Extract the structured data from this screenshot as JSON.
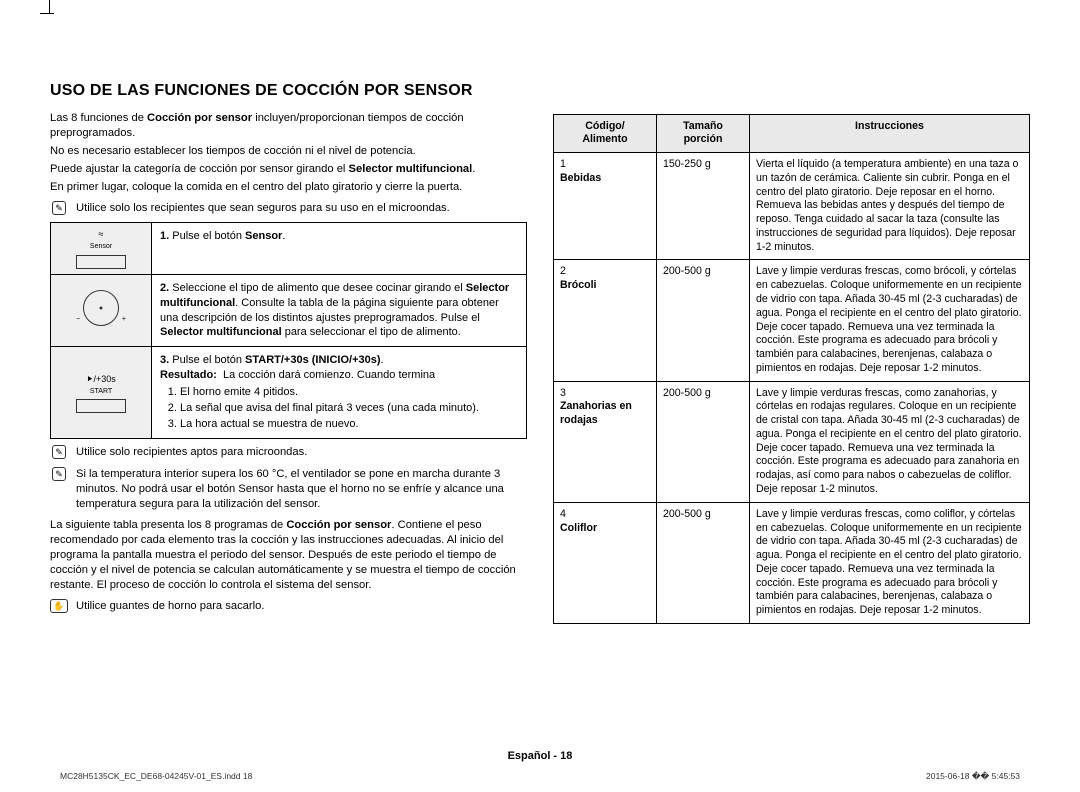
{
  "title": "USO DE LAS FUNCIONES DE COCCIÓN POR SENSOR",
  "intro": {
    "p1a": "Las 8 funciones de ",
    "p1b": "Cocción por sensor",
    "p1c": " incluyen/proporcionan tiempos de cocción preprogramados.",
    "p2": "No es necesario establecer los tiempos de cocción ni el nivel de potencia.",
    "p3a": "Puede ajustar la categoría de cocción por sensor girando el ",
    "p3b": "Selector multifuncional",
    "p3c": ".",
    "p4": "En primer lugar, coloque la comida en el centro del plato giratorio y cierre la puerta."
  },
  "notes": {
    "n1": "Utilice solo los recipientes que sean seguros para su uso en el microondas.",
    "n2": "Utilice solo recipientes aptos para microondas.",
    "n3": "Si la temperatura interior supera los 60 °C, el ventilador se pone en marcha durante 3 minutos. No podrá usar el botón Sensor hasta que el horno no se enfríe y alcance una temperatura segura para la utilización del sensor.",
    "n4": "Utilice guantes de horno para sacarlo."
  },
  "steps": {
    "s1": {
      "label": "Sensor",
      "num": "1.",
      "txt_a": "Pulse el botón ",
      "txt_b": "Sensor",
      "txt_c": "."
    },
    "s2": {
      "num": "2.",
      "txt_a": "Seleccione el tipo de alimento que desee cocinar girando el ",
      "txt_b": "Selector multifuncional",
      "txt_c": ". Consulte la tabla de la página siguiente para obtener una descripción de los distintos ajustes preprogramados. Pulse el ",
      "txt_d": "Selector multifuncional",
      "txt_e": " para seleccionar el tipo de alimento."
    },
    "s3": {
      "label": "START",
      "sub": "⯈/+30s",
      "num": "3.",
      "txt_a": "Pulse el botón ",
      "txt_b": "START/+30s (INICIO/+30s)",
      "txt_c": ".",
      "res_label": "Resultado:",
      "res_txt": "La cocción dará comienzo. Cuando termina",
      "li1": "El horno emite 4 pitidos.",
      "li2": "La señal que avisa del final pitará 3 veces (una cada minuto).",
      "li3": "La hora actual se muestra de nuevo."
    }
  },
  "paragraph2": {
    "a": "La siguiente tabla presenta los 8 programas de ",
    "b": "Cocción por sensor",
    "c": ". Contiene el peso recomendado por cada elemento tras la cocción y las instrucciones adecuadas. Al inicio del programa la pantalla muestra el periodo del sensor. Después de este periodo el tiempo de cocción y el nivel de potencia se calculan automáticamente y se muestra el tiempo de cocción restante. El proceso de cocción lo controla el sistema del sensor."
  },
  "headers": {
    "h1": "Código/\nAlimento",
    "h2": "Tamaño porción",
    "h3": "Instrucciones"
  },
  "rows": [
    {
      "code": "1",
      "name": "Bebidas",
      "size": "150-250 g",
      "ins": "Vierta el líquido (a temperatura ambiente) en una taza o un tazón de cerámica. Caliente sin cubrir. Ponga en el centro del plato giratorio. Deje reposar en el horno. Remueva las bebidas antes y después del tiempo de reposo. Tenga cuidado al sacar la taza (consulte las instrucciones de seguridad para líquidos). Deje reposar 1-2 minutos."
    },
    {
      "code": "2",
      "name": "Brócoli",
      "size": "200-500 g",
      "ins": "Lave y limpie verduras frescas, como brócoli, y córtelas en cabezuelas. Coloque uniformemente en un recipiente de vidrio con tapa. Añada 30-45 ml (2-3 cucharadas) de agua. Ponga el recipiente en el centro del plato giratorio. Deje cocer tapado. Remueva una vez terminada la cocción. Este programa es adecuado para brócoli y también para calabacines, berenjenas, calabaza o pimientos en rodajas. Deje reposar 1-2 minutos."
    },
    {
      "code": "3",
      "name": "Zanahorias en rodajas",
      "size": "200-500 g",
      "ins": "Lave y limpie verduras frescas, como zanahorias, y córtelas en rodajas regulares. Coloque en un recipiente de cristal con tapa. Añada 30-45 ml (2-3 cucharadas) de agua. Ponga el recipiente en el centro del plato giratorio. Deje cocer tapado. Remueva una vez terminada la cocción. Este programa es adecuado para zanahoria en rodajas, así como para nabos o cabezuelas de coliflor. Deje reposar 1-2 minutos."
    },
    {
      "code": "4",
      "name": "Coliflor",
      "size": "200-500 g",
      "ins": "Lave y limpie verduras frescas, como coliflor, y córtelas en cabezuelas. Coloque uniformemente en un recipiente de vidrio con tapa. Añada 30-45 ml (2-3 cucharadas) de agua. Ponga el recipiente en el centro del plato giratorio. Deje cocer tapado. Remueva una vez terminada la cocción. Este programa es adecuado para brócoli y también para calabacines, berenjenas, calabaza o pimientos en rodajas. Deje reposar 1-2 minutos."
    }
  ],
  "footer": {
    "lang": "Español - ",
    "page": "18"
  },
  "meta": {
    "file": "MC28H5135CK_EC_DE68-04245V-01_ES.indd   18",
    "ts": "2015-06-18   �� 5:45:53"
  }
}
